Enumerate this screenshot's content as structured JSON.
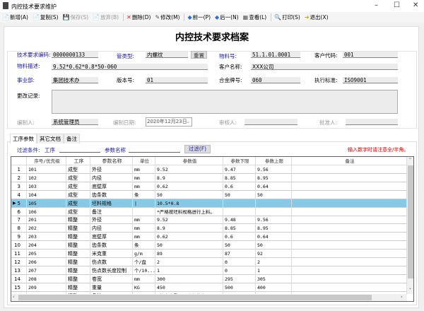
{
  "window": {
    "title": "内控技术要求维护",
    "minimize": "–",
    "maximize": "☐",
    "close": "✕"
  },
  "toolbar": [
    {
      "label": "新增(A)",
      "icon": "📄",
      "name": "new",
      "enabled": true
    },
    {
      "label": "复制(S)",
      "icon": "📄",
      "name": "copy",
      "enabled": true
    },
    {
      "label": "保存(S)",
      "icon": "💾",
      "name": "save",
      "enabled": false
    },
    {
      "label": "放弃(B)",
      "icon": "📄",
      "name": "discard",
      "enabled": false
    },
    {
      "label": "删除(D)",
      "icon": "✕",
      "name": "delete",
      "enabled": true
    },
    {
      "label": "修改(M)",
      "icon": "✎",
      "name": "edit",
      "enabled": true
    },
    {
      "label": "前一(P)",
      "icon": "◆",
      "name": "prev",
      "enabled": true
    },
    {
      "label": "后一(N)",
      "icon": "◆",
      "name": "next",
      "enabled": true
    },
    {
      "label": "查看(L)",
      "icon": "▦",
      "name": "view",
      "enabled": true
    },
    {
      "label": "打印(S)",
      "icon": "🔍",
      "name": "print",
      "enabled": true
    },
    {
      "label": "退出(X)",
      "icon": "➜",
      "name": "exit",
      "enabled": true
    }
  ],
  "form": {
    "title": "内控技术要求档案",
    "code_label": "技术要求编码:",
    "code": "0000000133",
    "pipe_type_label": "管类型:",
    "pipe_type": "内螺纹",
    "reset": "重置",
    "material_no_label": "物料号:",
    "material_no": "51.1.01.0001",
    "customer_code_label": "客户代码:",
    "customer_code": "001",
    "material_desc_label": "物料描述:",
    "material_desc": "9.52*0.62*0.8*50-060",
    "customer_name_label": "客户名称:",
    "customer_name": "XXX公司",
    "division_label": "事业部:",
    "division": "集团技术办",
    "version_label": "版本号:",
    "version": "01",
    "alloy_label": "合金牌号:",
    "alloy": "060",
    "standard_label": "执行标准:",
    "standard": "ISO9001",
    "change_log_label": "更改记录:",
    "change_log": "",
    "author_label": "编制人:",
    "author": "系统管理员",
    "date_label": "编制日期:",
    "date": "2020年12月23日",
    "reviewer_label": "审核人:",
    "reviewer": "",
    "approver_label": "批准人:",
    "approver": ""
  },
  "tabs": [
    "工序参数",
    "其它文档",
    "备注"
  ],
  "filter": {
    "label": "过滤条件:",
    "process_label": "工序",
    "process": "",
    "param_label": "参数名称",
    "param": "",
    "button": "过滤(F)",
    "notice": "输入数字时请注意全/半角。"
  },
  "grid": {
    "columns": [
      "",
      "序号/优先级",
      "工序",
      "参数名称",
      "单位",
      "参数值",
      "参数下限",
      "参数上限",
      "备注"
    ],
    "selected_row": 5,
    "rows": [
      [
        "1",
        "101",
        "成型",
        "外径",
        "mm",
        "9.52",
        "9.47",
        "9.56",
        ""
      ],
      [
        "2",
        "102",
        "成型",
        "内径",
        "mm",
        "8.9",
        "8.85",
        "8.95",
        ""
      ],
      [
        "3",
        "103",
        "成型",
        "底壁厚",
        "mm",
        "0.62",
        "0.6",
        "0.64",
        ""
      ],
      [
        "4",
        "104",
        "成型",
        "齿条数",
        "条",
        "50",
        "50",
        "50",
        ""
      ],
      [
        "5",
        "105",
        "成型",
        "坯料规格",
        "|",
        "10.5*0.8",
        "",
        "",
        ""
      ],
      [
        "6",
        "106",
        "成型",
        "备注",
        "",
        "*严格按坯料规格进行上料。",
        "",
        "",
        ""
      ],
      [
        "7",
        "201",
        "精整",
        "外径",
        "mm",
        "9.52",
        "9.48",
        "9.56",
        ""
      ],
      [
        "8",
        "202",
        "精整",
        "内径",
        "mm",
        "8.9",
        "8.85",
        "8.95",
        ""
      ],
      [
        "9",
        "203",
        "精整",
        "底壁厚",
        "mm",
        "0.62",
        "0.6",
        "0.64",
        ""
      ],
      [
        "10",
        "204",
        "精整",
        "齿条数",
        "条",
        "50",
        "50",
        "50",
        ""
      ],
      [
        "11",
        "205",
        "精整",
        "米克重",
        "g/m",
        "89",
        "87",
        "92",
        ""
      ],
      [
        "12",
        "206",
        "精整",
        "伤点数",
        "个/盘",
        "2",
        "0",
        "2",
        ""
      ],
      [
        "13",
        "207",
        "精整",
        "伤点数长度控制",
        "个/10...",
        "1",
        "0",
        "1",
        ""
      ],
      [
        "14",
        "208",
        "精整",
        "卷宽",
        "mm",
        "300",
        "295",
        "305",
        ""
      ],
      [
        "15",
        "209",
        "精整",
        "重量",
        "KG",
        "450",
        "500",
        "400",
        ""
      ],
      [
        "16",
        "210",
        "精整",
        "备注",
        "",
        "*按米克重下限进行生产",
        "",
        "",
        ""
      ]
    ]
  },
  "colors": {
    "selected_row": "#86c9e6",
    "label_blue": "#1a1aa8",
    "notice_red": "#e00000"
  }
}
